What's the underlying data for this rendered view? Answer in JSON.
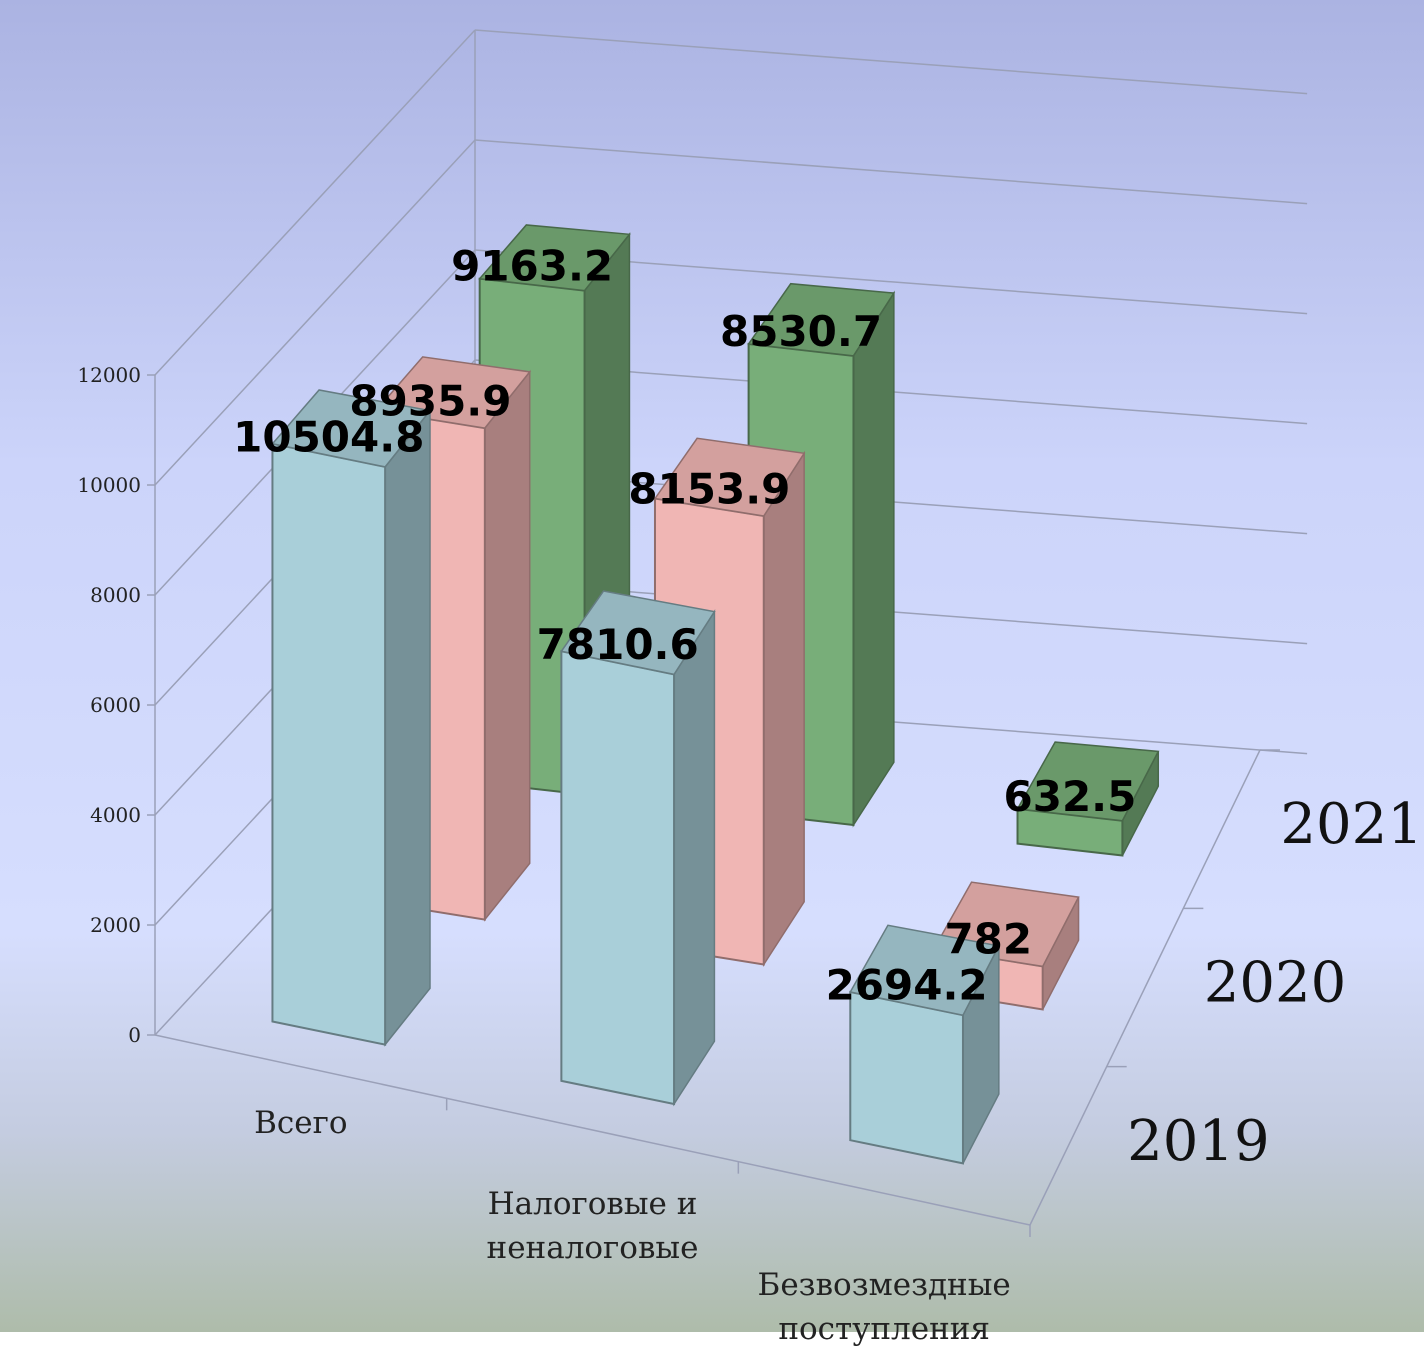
{
  "chart_data": {
    "type": "bar3d",
    "categories": [
      "Всего",
      "Налоговые и неналоговые",
      "Безвозмездные поступления"
    ],
    "series": [
      {
        "name": "2019",
        "color": "#a9cfd9",
        "values": [
          10504.8,
          7810.6,
          2694.2
        ]
      },
      {
        "name": "2020",
        "color": "#f0b6b4",
        "values": [
          8935.9,
          8153.9,
          782
        ]
      },
      {
        "name": "2021",
        "color": "#78ae79",
        "values": [
          9163.2,
          8530.7,
          632.5
        ]
      }
    ],
    "ylim": [
      0,
      12000
    ],
    "yticks": [
      0,
      2000,
      4000,
      6000,
      8000,
      10000,
      12000
    ],
    "grid": true
  }
}
